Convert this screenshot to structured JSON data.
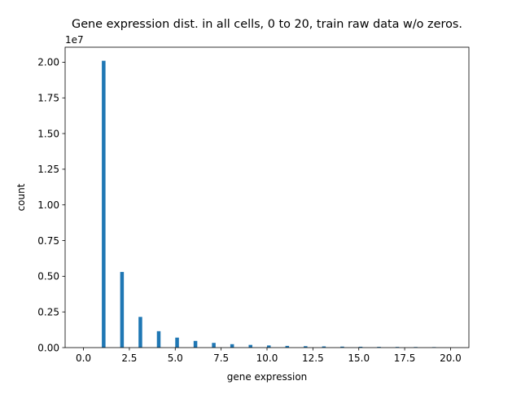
{
  "chart_data": {
    "type": "bar",
    "title": "Gene expression dist. in all cells, 0 to 20, train raw data w/o zeros.",
    "xlabel": "gene expression",
    "ylabel": "count",
    "y_multiplier_label": "1e7",
    "y_multiplier": 10000000,
    "xlim": [
      -1.0,
      21.0
    ],
    "ylim": [
      0,
      21050000
    ],
    "x_ticks": [
      {
        "value": 0.0,
        "label": "0.0"
      },
      {
        "value": 2.5,
        "label": "2.5"
      },
      {
        "value": 5.0,
        "label": "5.0"
      },
      {
        "value": 7.5,
        "label": "7.5"
      },
      {
        "value": 10.0,
        "label": "10.0"
      },
      {
        "value": 12.5,
        "label": "12.5"
      },
      {
        "value": 15.0,
        "label": "15.0"
      },
      {
        "value": 17.5,
        "label": "17.5"
      },
      {
        "value": 20.0,
        "label": "20.0"
      }
    ],
    "y_ticks": [
      {
        "value": 0,
        "label": "0.00"
      },
      {
        "value": 2500000,
        "label": "0.25"
      },
      {
        "value": 5000000,
        "label": "0.50"
      },
      {
        "value": 7500000,
        "label": "0.75"
      },
      {
        "value": 10000000,
        "label": "1.00"
      },
      {
        "value": 12500000,
        "label": "1.25"
      },
      {
        "value": 15000000,
        "label": "1.50"
      },
      {
        "value": 17500000,
        "label": "1.75"
      },
      {
        "value": 20000000,
        "label": "2.00"
      }
    ],
    "bin_width": 0.2,
    "x": [
      1,
      2,
      3,
      4,
      5,
      6,
      7,
      8,
      9,
      10,
      11,
      12,
      13,
      14,
      15,
      16,
      17,
      18,
      19
    ],
    "values": [
      20100000,
      5300000,
      2150000,
      1150000,
      700000,
      470000,
      330000,
      240000,
      190000,
      150000,
      120000,
      100000,
      85000,
      70000,
      60000,
      52000,
      45000,
      40000,
      35000
    ],
    "color": "#1f77b4",
    "grid": false,
    "legend": "none"
  }
}
